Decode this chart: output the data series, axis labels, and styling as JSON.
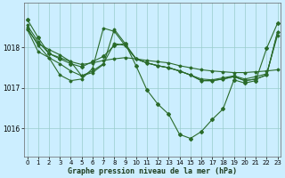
{
  "background_color": "#cceeff",
  "grid_color": "#99cccc",
  "line_color": "#2a6b2a",
  "xlabel": "Graphe pression niveau de la mer (hPa)",
  "x_ticks": [
    0,
    1,
    2,
    3,
    4,
    5,
    6,
    7,
    8,
    9,
    10,
    11,
    12,
    13,
    14,
    15,
    16,
    17,
    18,
    19,
    20,
    21,
    22,
    23
  ],
  "y_ticks": [
    1016,
    1017,
    1018
  ],
  "ylim": [
    1015.3,
    1019.1
  ],
  "xlim": [
    -0.3,
    23.3
  ],
  "series_main": [
    1018.7,
    1018.25,
    1017.85,
    1017.72,
    1017.6,
    1017.52,
    1017.65,
    1017.78,
    1018.05,
    1018.1,
    1017.55,
    1016.95,
    1016.6,
    1016.35,
    1015.85,
    1015.75,
    1015.92,
    1016.22,
    1016.48,
    1017.2,
    1017.12,
    1017.18,
    1017.98,
    1018.6
  ],
  "series_flat1": [
    1018.55,
    1018.15,
    1017.85,
    1017.75,
    1017.65,
    1017.58,
    1017.62,
    1017.68,
    1017.72,
    1017.75,
    1017.72,
    1017.68,
    1017.65,
    1017.62,
    1017.55,
    1017.5,
    1017.45,
    1017.42,
    1017.4,
    1017.38,
    1017.38,
    1017.4,
    1017.42,
    1017.45
  ],
  "series_flat2": [
    1018.45,
    1017.9,
    1017.75,
    1017.6,
    1017.42,
    1017.3,
    1017.42,
    1017.6,
    1018.1,
    1018.05,
    1017.72,
    1017.62,
    1017.55,
    1017.5,
    1017.42,
    1017.32,
    1017.22,
    1017.2,
    1017.25,
    1017.3,
    1017.22,
    1017.28,
    1017.35,
    1018.3
  ],
  "series_flat3": [
    1018.45,
    1018.1,
    1017.95,
    1017.82,
    1017.65,
    1017.3,
    1017.38,
    1017.58,
    1018.45,
    1018.1,
    1017.72,
    1017.62,
    1017.55,
    1017.5,
    1017.42,
    1017.32,
    1017.18,
    1017.18,
    1017.22,
    1017.28,
    1017.18,
    1017.22,
    1017.32,
    1018.38
  ],
  "series_spike": [
    1018.5,
    1018.05,
    1017.75,
    1017.32,
    1017.18,
    1017.22,
    1017.48,
    1018.48,
    1018.4,
    1018.05,
    1017.72,
    1017.62,
    1017.55,
    1017.5,
    1017.42,
    1017.32,
    1017.18,
    1017.18,
    1017.22,
    1017.28,
    1017.18,
    1017.22,
    1017.32,
    1018.38
  ]
}
